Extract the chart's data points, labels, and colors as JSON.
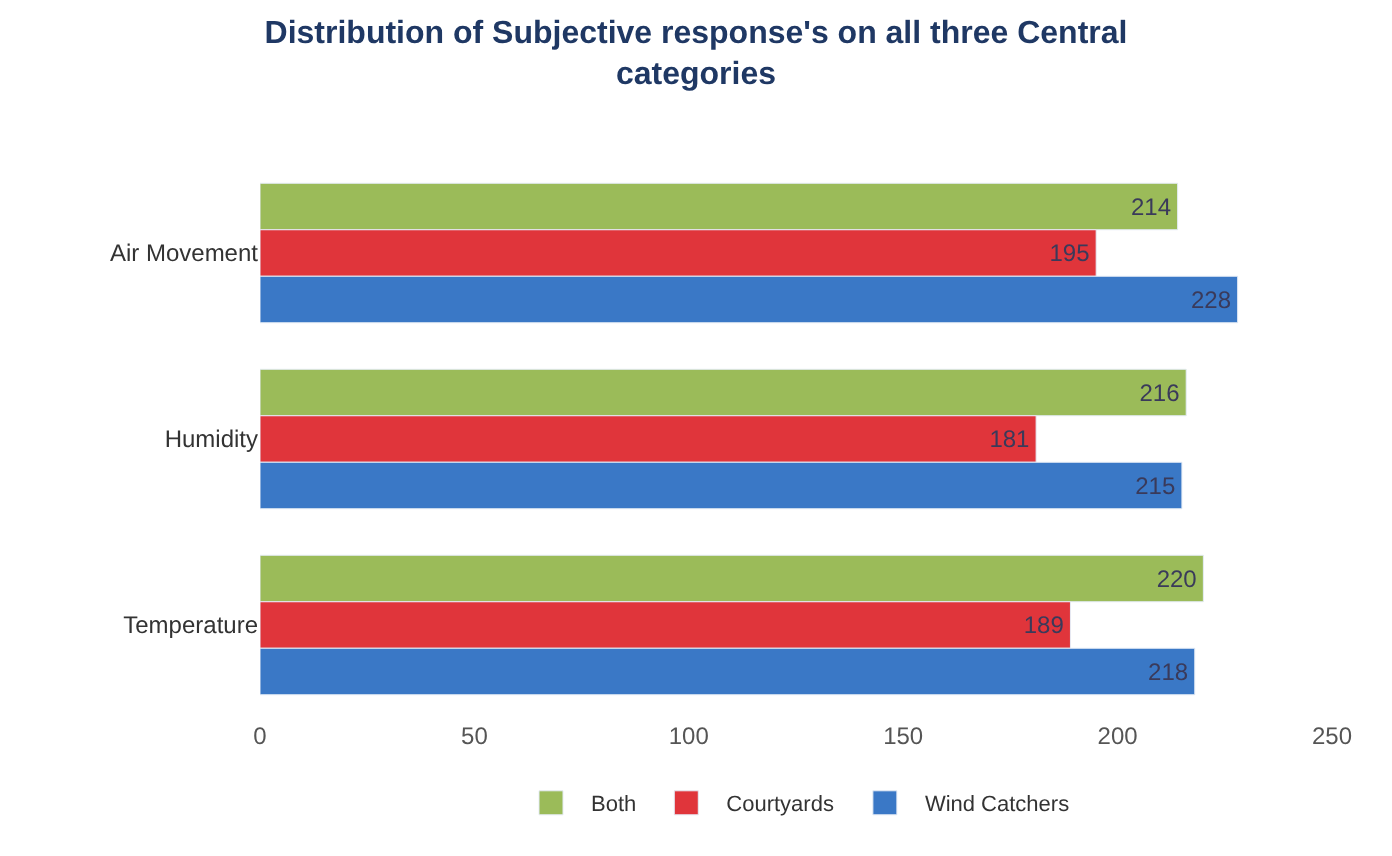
{
  "chart_data": {
    "type": "bar",
    "orientation": "horizontal",
    "title": "Distribution of Subjective response's on all three Central categories",
    "categories": [
      "Air Movement",
      "Humidity",
      "Temperature"
    ],
    "series": [
      {
        "name": "Both",
        "color": "#9bbb59",
        "values": [
          214,
          216,
          220
        ]
      },
      {
        "name": "Courtyards",
        "color": "#e0353b",
        "values": [
          195,
          181,
          189
        ]
      },
      {
        "name": "Wind Catchers",
        "color": "#3a78c6",
        "values": [
          228,
          215,
          218
        ]
      }
    ],
    "xlim": [
      0,
      250
    ],
    "xticks": [
      0,
      50,
      100,
      150,
      200,
      250
    ],
    "legend": "bottom",
    "data_labels": true
  }
}
